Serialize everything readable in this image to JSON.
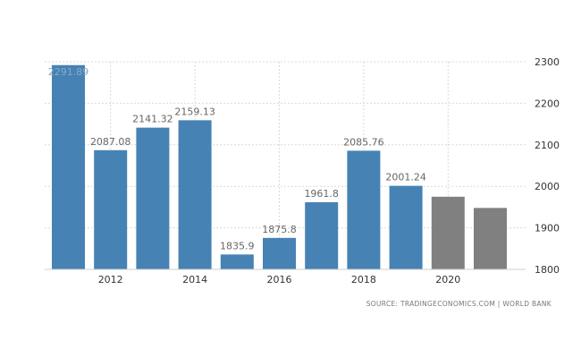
{
  "chart_data": {
    "type": "bar",
    "x": [
      2011,
      2012,
      2013,
      2014,
      2015,
      2016,
      2017,
      2018,
      2019,
      2020,
      2021
    ],
    "x_tick_labels": [
      "2012",
      "2014",
      "2016",
      "2018",
      "2020"
    ],
    "x_tick_values": [
      2012,
      2014,
      2016,
      2018,
      2020
    ],
    "values": [
      2291.89,
      2087.08,
      2141.32,
      2159.13,
      1835.9,
      1875.8,
      1961.8,
      2085.76,
      2001.24,
      1975,
      1948
    ],
    "value_labels": [
      "2291.89",
      "2087.08",
      "2141.32",
      "2159.13",
      "1835.9",
      "1875.8",
      "1961.8",
      "2085.76",
      "2001.24",
      "",
      ""
    ],
    "is_forecast": [
      false,
      false,
      false,
      false,
      false,
      false,
      false,
      false,
      false,
      true,
      true
    ],
    "ylim": [
      1800,
      2300
    ],
    "y_ticks": [
      1800,
      1900,
      2000,
      2100,
      2200,
      2300
    ],
    "y_axis_side": "right",
    "grid": true,
    "title": "",
    "xlabel": "",
    "ylabel": "",
    "colors": {
      "actual": "#4682b4",
      "forecast": "#808080"
    }
  },
  "source": "SOURCE: TRADINGECONOMICS.COM | WORLD BANK"
}
